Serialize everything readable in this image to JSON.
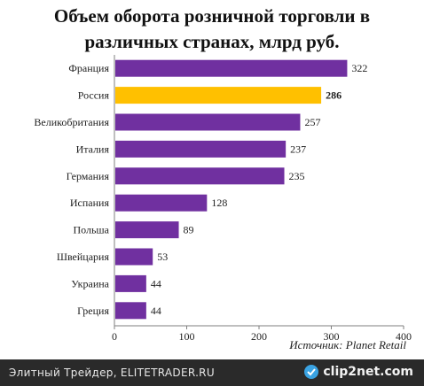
{
  "chart_data": {
    "type": "bar",
    "orientation": "horizontal",
    "title_lines": [
      "Объем оборота розничной торговли в",
      "различных странах, млрд руб."
    ],
    "categories": [
      "Франция",
      "Россия",
      "Великобритания",
      "Италия",
      "Германия",
      "Испания",
      "Польша",
      "Швейцария",
      "Украина",
      "Греция"
    ],
    "values": [
      322,
      286,
      257,
      237,
      235,
      128,
      89,
      53,
      44,
      44
    ],
    "value_labels": [
      "322",
      "286",
      "257",
      "237",
      "235",
      "128",
      "89",
      "53",
      "44",
      "44"
    ],
    "highlight_index": 1,
    "xlim": [
      0,
      400
    ],
    "xticks": [
      0,
      100,
      200,
      300,
      400
    ],
    "tick_labels": [
      "0",
      "100",
      "200",
      "300",
      "400"
    ],
    "colors": {
      "bar": "#7030a0",
      "highlight": "#ffc000"
    },
    "source": "Источник: Planet Retail"
  },
  "footer": {
    "text": "Элитный Трейдер, ELITETRADER.RU",
    "brand": "clip2net.com",
    "brand_icon": "clip-icon"
  }
}
